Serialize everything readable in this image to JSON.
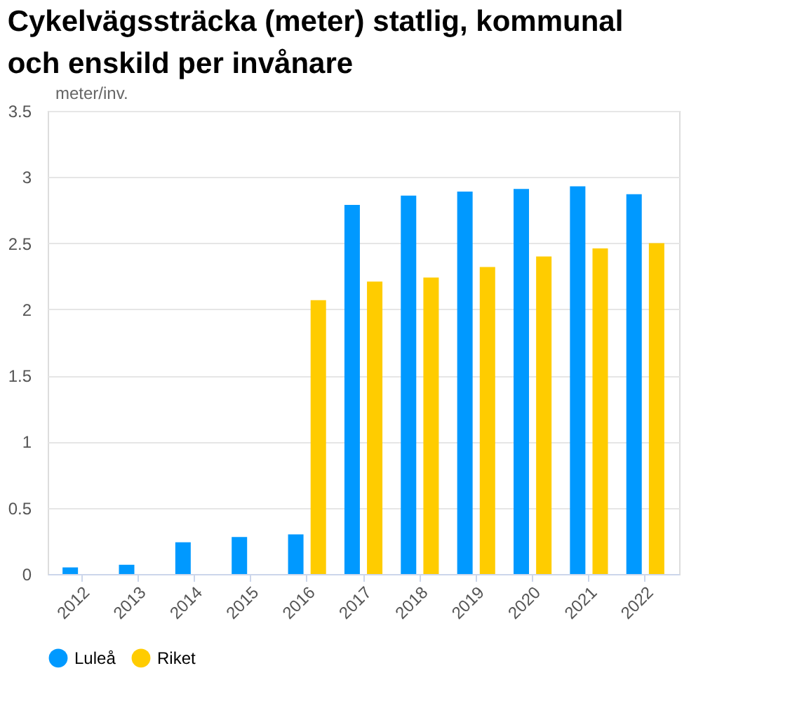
{
  "chart_data": {
    "type": "bar",
    "title": "Cykelvägssträcka (meter) statlig, kommunal och enskild per invånare",
    "ylabel": "meter/inv.",
    "categories": [
      "2012",
      "2013",
      "2014",
      "2015",
      "2016",
      "2017",
      "2018",
      "2019",
      "2020",
      "2021",
      "2022"
    ],
    "series": [
      {
        "name": "Luleå",
        "color": "#0099ff",
        "values": [
          0.05,
          0.07,
          0.24,
          0.28,
          0.3,
          2.79,
          2.86,
          2.89,
          2.91,
          2.93,
          2.87
        ]
      },
      {
        "name": "Riket",
        "color": "#ffcc00",
        "values": [
          null,
          null,
          null,
          null,
          2.07,
          2.21,
          2.24,
          2.32,
          2.4,
          2.46,
          2.5
        ]
      }
    ],
    "ylim": [
      0,
      3.5
    ],
    "yticks": [
      0,
      0.5,
      1,
      1.5,
      2,
      2.5,
      3,
      3.5
    ],
    "grid": "y",
    "legend": "bottom"
  }
}
